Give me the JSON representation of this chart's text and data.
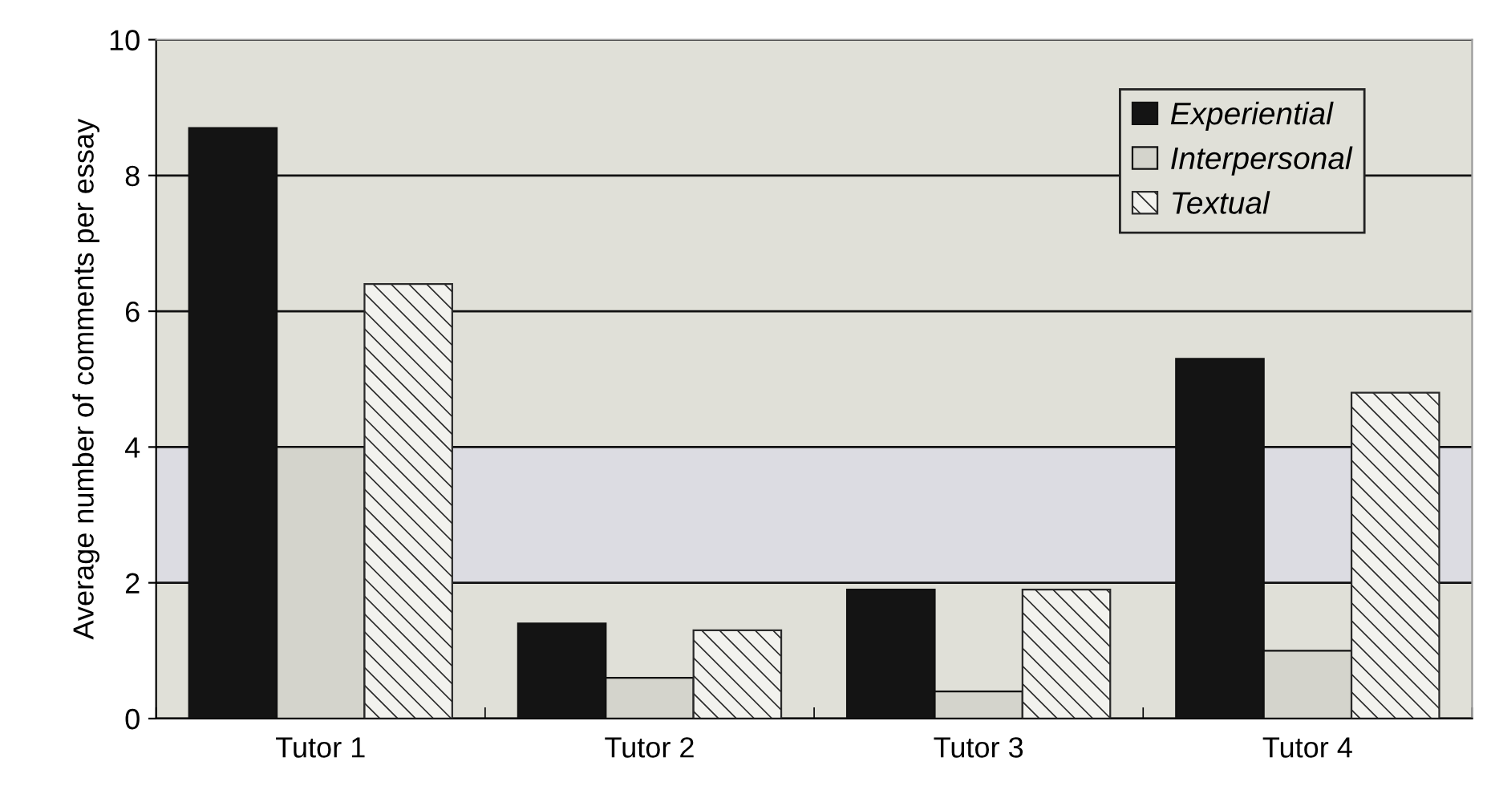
{
  "chart_data": {
    "type": "bar",
    "ylabel": "Average number of comments per essay",
    "categories": [
      "Tutor 1",
      "Tutor 2",
      "Tutor 3",
      "Tutor 4"
    ],
    "series": [
      {
        "name": "Experiential",
        "color": "#141414",
        "values": [
          8.7,
          1.4,
          1.9,
          5.3
        ]
      },
      {
        "name": "Interpersonal",
        "color": "#d4d4cc",
        "values": [
          4.0,
          0.6,
          0.4,
          1.0
        ]
      },
      {
        "name": "Textual",
        "color": "#2a2a2a",
        "values": [
          6.4,
          1.3,
          1.9,
          4.8
        ]
      }
    ],
    "ylim": [
      0,
      10
    ],
    "yticks": [
      0,
      2,
      4,
      6,
      8,
      10
    ],
    "grid": "y",
    "legend": "top right",
    "bands": [
      {
        "axis": "y",
        "from": 2,
        "to": 4,
        "color": "#dcdce2"
      }
    ]
  }
}
